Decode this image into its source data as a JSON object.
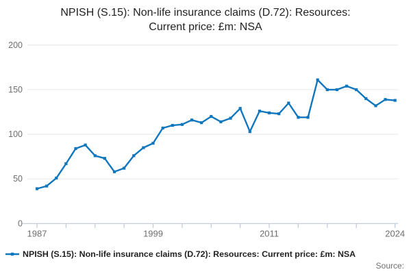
{
  "title": {
    "text": "NPISH (S.15): Non-life insurance claims (D.72): Resources: Current price: £m: NSA"
  },
  "legend": {
    "label": "NPISH (S.15): Non-life insurance claims (D.72): Resources: Current price: £m: NSA"
  },
  "footer": {
    "source_label": "Source:"
  },
  "colors": {
    "line": "#1076BD",
    "grid": "#e6e6e6",
    "axis": "#bcc8d8",
    "tick_text": "#6e6e6e",
    "title_text": "#222222"
  },
  "chart_data": {
    "type": "line",
    "title": "NPISH (S.15): Non-life insurance claims (D.72): Resources: Current price: £m: NSA",
    "xlabel": "",
    "ylabel": "",
    "x": [
      1987,
      1988,
      1989,
      1990,
      1991,
      1992,
      1993,
      1994,
      1995,
      1996,
      1997,
      1998,
      1999,
      2000,
      2001,
      2002,
      2003,
      2004,
      2005,
      2006,
      2007,
      2008,
      2009,
      2010,
      2011,
      2012,
      2013,
      2014,
      2015,
      2016,
      2017,
      2018,
      2019,
      2020,
      2021,
      2022,
      2023,
      2024
    ],
    "values": [
      39,
      42,
      51,
      67,
      84,
      88,
      76,
      73,
      58,
      62,
      76,
      85,
      90,
      107,
      110,
      111,
      116,
      113,
      120,
      114,
      118,
      129,
      103,
      126,
      124,
      123,
      135,
      119,
      119,
      161,
      150,
      150,
      154,
      150,
      140,
      132,
      139,
      138
    ],
    "series_name": "NPISH (S.15): Non-life insurance claims (D.72): Resources: Current price: £m: NSA",
    "ylim": [
      0,
      200
    ],
    "yticks": [
      0,
      50,
      100,
      150,
      200
    ],
    "xticks": [
      1987,
      1990,
      1993,
      1996,
      1999,
      2002,
      2005,
      2008,
      2011,
      2014,
      2017,
      2020,
      2024
    ],
    "xtick_labels": [
      1987,
      1999,
      2011,
      2024
    ],
    "grid": "horizontal",
    "legend_position": "bottom-left",
    "marker": "square"
  }
}
